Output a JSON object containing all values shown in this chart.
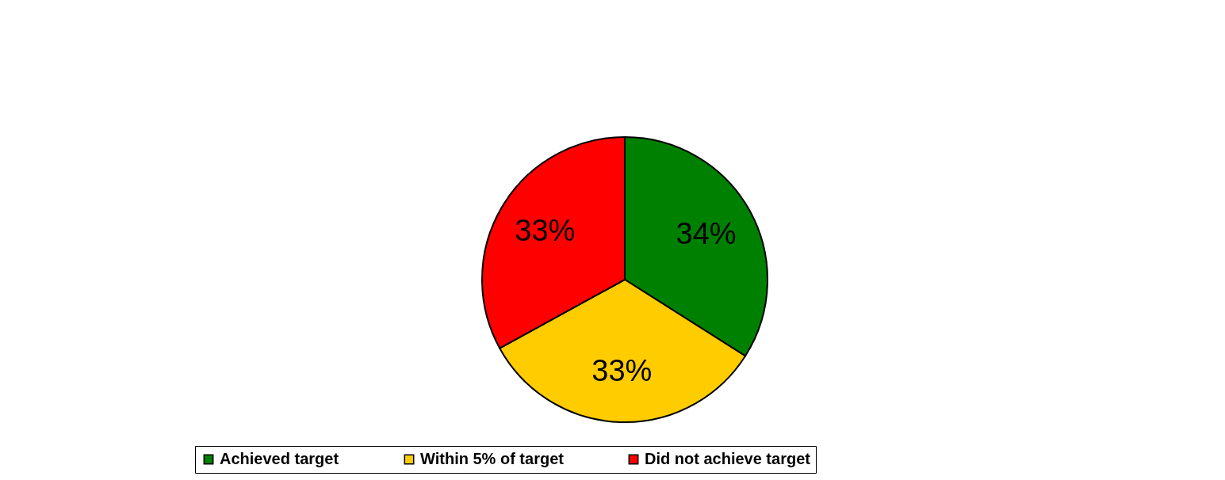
{
  "chart_data": {
    "type": "pie",
    "categories": [
      "Achieved target",
      "Within 5% of target",
      "Did not achieve target"
    ],
    "values": [
      34,
      33,
      33
    ],
    "colors": [
      "#008000",
      "#ffcc00",
      "#ff0000"
    ],
    "value_labels": [
      "34%",
      "33%",
      "33%"
    ],
    "legend": "bottom"
  }
}
